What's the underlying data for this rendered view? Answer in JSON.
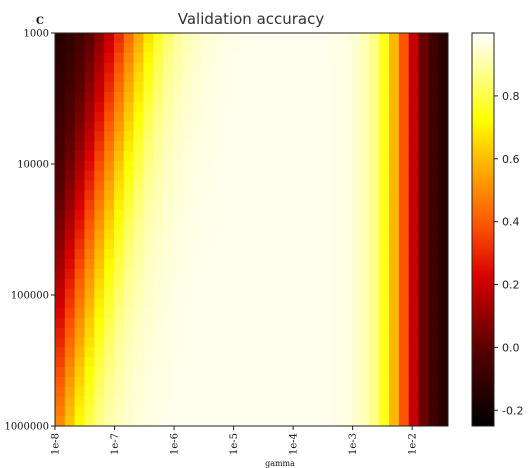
{
  "panel_label": "C",
  "chart_data": {
    "type": "heatmap",
    "title": "Validation accuracy",
    "xlabel": "gamma",
    "ylabel": "",
    "x_scale": "log",
    "y_scale": "log",
    "x_ticks": [
      "1e-8",
      "1e-7",
      "1e-6",
      "1e-5",
      "1e-4",
      "1e-3",
      "1e-2"
    ],
    "x_tick_values": [
      1e-08,
      1e-07,
      1e-06,
      1e-05,
      0.0001,
      0.001,
      0.01
    ],
    "y_ticks": [
      "1000",
      "10000",
      "100000",
      "1000000"
    ],
    "y_tick_values": [
      1000,
      10000,
      100000,
      1000000
    ],
    "x_range": [
      1e-08,
      0.04
    ],
    "y_range": [
      1000,
      1000000
    ],
    "grid": false,
    "colormap": "hot",
    "colorbar": {
      "ticks": [
        "0.8",
        "0.6",
        "0.4",
        "0.2",
        "0.0",
        "-0.2"
      ],
      "tick_values": [
        0.8,
        0.6,
        0.4,
        0.2,
        0.0,
        -0.2
      ],
      "range": [
        -0.25,
        1.0
      ]
    },
    "summary_values": {
      "low_gamma_high_C_region": -0.2,
      "plateau_region": 1.0,
      "high_gamma_edge": -0.2
    }
  }
}
